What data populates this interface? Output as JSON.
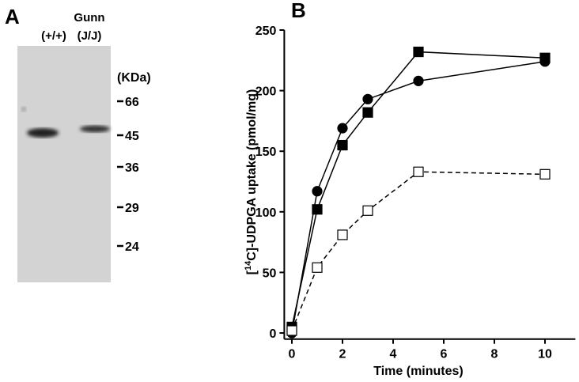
{
  "panel_a": {
    "letter": "A",
    "lanes": [
      "(+/+)",
      "Gunn",
      "(J/J)"
    ],
    "unit": "(KDa)",
    "markers": [
      66,
      45,
      36,
      29,
      24
    ]
  },
  "chart_data": {
    "type": "line",
    "letter": "B",
    "xlabel": "Time (minutes)",
    "ylabel": {
      "open": "[",
      "sup": "14",
      "rest": "C]-UDPGA uptake (pmol/mg)"
    },
    "x": [
      0,
      1,
      2,
      3,
      5,
      10
    ],
    "series": [
      {
        "color": "#000000",
        "marker": "circle",
        "filled": true,
        "dashed": false,
        "values": [
          0,
          117,
          169,
          193,
          208,
          224
        ]
      },
      {
        "color": "#000000",
        "marker": "square",
        "filled": true,
        "dashed": false,
        "values": [
          5,
          102,
          155,
          182,
          232,
          227
        ]
      },
      {
        "color": "#000000",
        "marker": "square",
        "filled": false,
        "dashed": true,
        "values": [
          2,
          54,
          81,
          101,
          133,
          131
        ]
      }
    ],
    "xlim": [
      -0.3,
      11.2
    ],
    "ylim": [
      -5,
      250
    ],
    "xticks": [
      0,
      2,
      4,
      6,
      8,
      10
    ],
    "yticks": [
      0,
      50,
      100,
      150,
      200,
      250
    ]
  }
}
